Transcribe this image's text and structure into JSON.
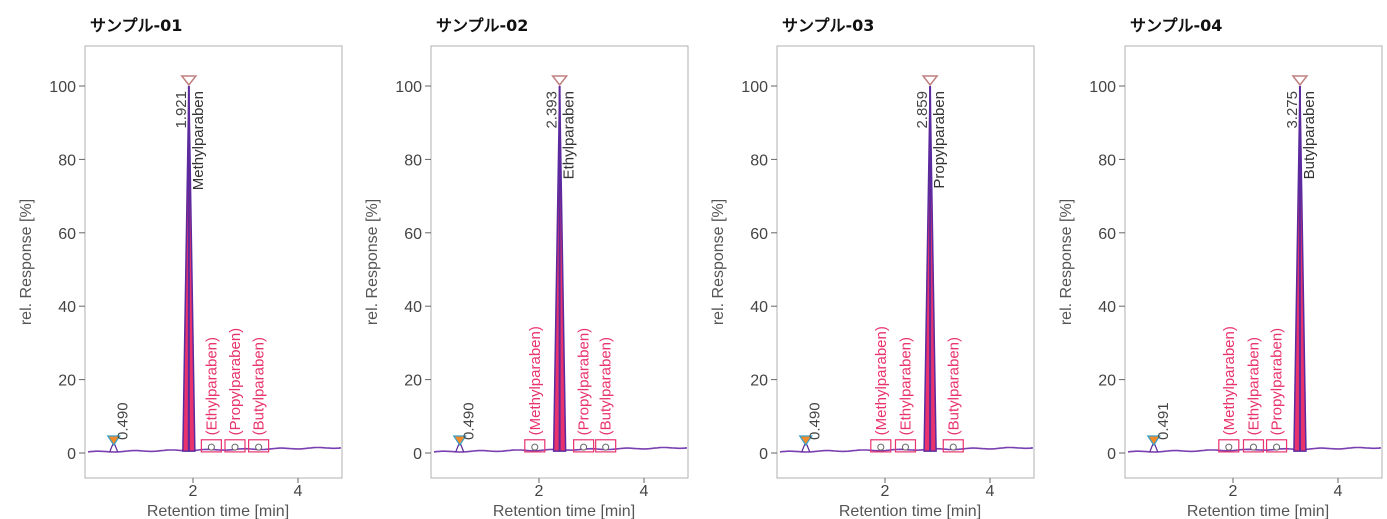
{
  "chart_data": [
    {
      "type": "line",
      "title": "サンプル-01",
      "xlabel": "Retention time [min]",
      "ylabel": "rel. Response [%]",
      "xlim": [
        0,
        5
      ],
      "ylim": [
        0,
        105
      ],
      "xticks": [
        2,
        4
      ],
      "yticks": [
        0,
        20,
        40,
        60,
        80,
        100
      ],
      "peaks": [
        {
          "rt": 0.49,
          "rt_label": "0.490",
          "height": 3,
          "name": "",
          "main": false
        },
        {
          "rt": 1.921,
          "rt_label": "1.921",
          "height": 100,
          "name": "Methylparaben",
          "main": true
        }
      ],
      "minor_peaks": [
        {
          "rt": 2.35,
          "name": "(Ethylparaben)"
        },
        {
          "rt": 2.8,
          "name": "(Propylparaben)"
        },
        {
          "rt": 3.25,
          "name": "(Butylparaben)"
        }
      ]
    },
    {
      "type": "line",
      "title": "サンプル-02",
      "xlabel": "Retention time [min]",
      "ylabel": "rel. Response [%]",
      "xlim": [
        0,
        5
      ],
      "ylim": [
        0,
        105
      ],
      "xticks": [
        2,
        4
      ],
      "yticks": [
        0,
        20,
        40,
        60,
        80,
        100
      ],
      "peaks": [
        {
          "rt": 0.49,
          "rt_label": "0.490",
          "height": 3,
          "name": "",
          "main": false
        },
        {
          "rt": 2.393,
          "rt_label": "2.393",
          "height": 100,
          "name": "Ethylparaben",
          "main": true
        }
      ],
      "minor_peaks": [
        {
          "rt": 1.92,
          "name": "(Methylparaben)"
        },
        {
          "rt": 2.85,
          "name": "(Propylparaben)"
        },
        {
          "rt": 3.27,
          "name": "(Butylparaben)"
        }
      ]
    },
    {
      "type": "line",
      "title": "サンプル-03",
      "xlabel": "Retention time [min]",
      "ylabel": "rel. Response [%]",
      "xlim": [
        0,
        5
      ],
      "ylim": [
        0,
        105
      ],
      "xticks": [
        2,
        4
      ],
      "yticks": [
        0,
        20,
        40,
        60,
        80,
        100
      ],
      "peaks": [
        {
          "rt": 0.49,
          "rt_label": "0.490",
          "height": 3,
          "name": "",
          "main": false
        },
        {
          "rt": 2.859,
          "rt_label": "2.859",
          "height": 100,
          "name": "Propylparaben",
          "main": true
        }
      ],
      "minor_peaks": [
        {
          "rt": 1.92,
          "name": "(Methylparaben)"
        },
        {
          "rt": 2.39,
          "name": "(Ethylparaben)"
        },
        {
          "rt": 3.3,
          "name": "(Butylparaben)"
        }
      ]
    },
    {
      "type": "line",
      "title": "サンプル-04",
      "xlabel": "Retention time [min]",
      "ylabel": "rel. Response [%]",
      "xlim": [
        0,
        5
      ],
      "ylim": [
        0,
        105
      ],
      "xticks": [
        2,
        4
      ],
      "yticks": [
        0,
        20,
        40,
        60,
        80,
        100
      ],
      "peaks": [
        {
          "rt": 0.491,
          "rt_label": "0.491",
          "height": 3,
          "name": "",
          "main": false
        },
        {
          "rt": 3.275,
          "rt_label": "3.275",
          "height": 100,
          "name": "Butylparaben",
          "main": true
        }
      ],
      "minor_peaks": [
        {
          "rt": 1.92,
          "name": "(Methylparaben)"
        },
        {
          "rt": 2.39,
          "name": "(Ethylparaben)"
        },
        {
          "rt": 2.83,
          "name": "(Propylparaben)"
        }
      ]
    }
  ],
  "colors": {
    "baseline": "#7a3fb0",
    "peak": "#5b2a9e",
    "peak_highlight": "#e8336d",
    "minor_label": "#e8336d",
    "marker": "#c08080",
    "frame": "#b0b0b0"
  }
}
